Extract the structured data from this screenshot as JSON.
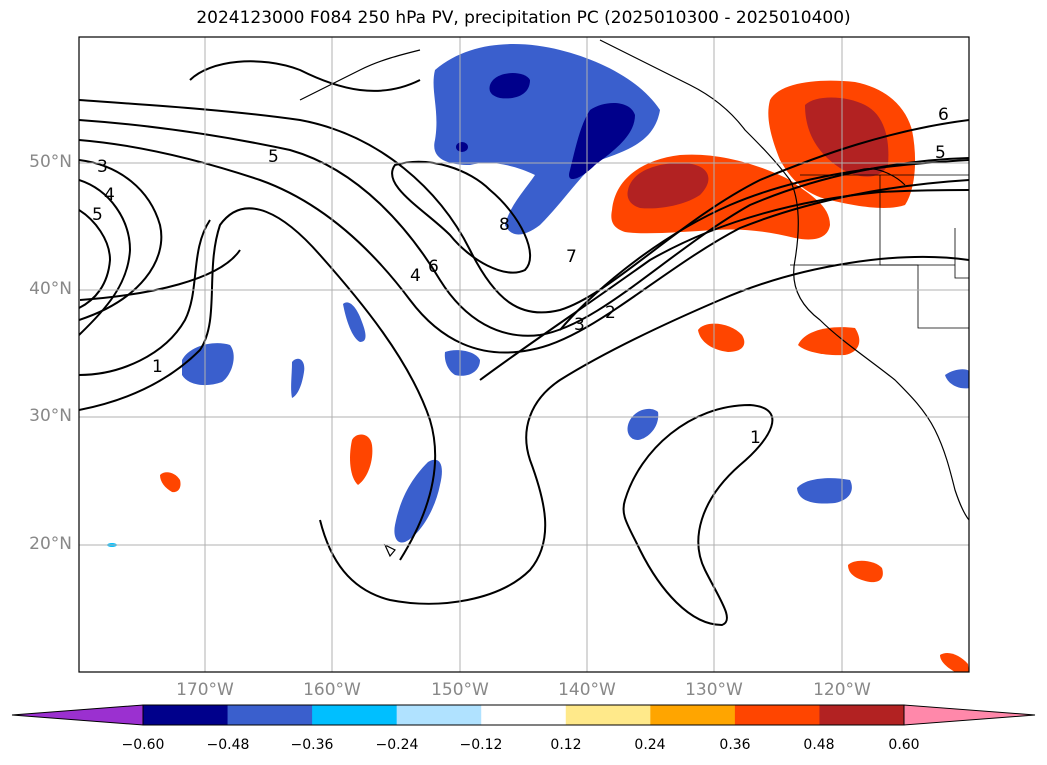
{
  "title": "2024123000 F084 250 hPa PV, precipitation PC (2025010300 - 2025010400)",
  "lat_labels": [
    "50°N",
    "40°N",
    "30°N",
    "20°N"
  ],
  "lon_labels": [
    "170°W",
    "160°W",
    "150°W",
    "140°W",
    "130°W",
    "120°W"
  ],
  "colorbar": {
    "ticks": [
      "−0.60",
      "−0.48",
      "−0.36",
      "−0.24",
      "−0.12",
      "0.12",
      "0.24",
      "0.36",
      "0.48",
      "0.60"
    ],
    "colors": [
      "#9b30d0",
      "#00008b",
      "#3a5fcd",
      "#00bfff",
      "#b0e2ff",
      "#ffffff",
      "#ffe98a",
      "#ffa500",
      "#ff4500",
      "#b22222",
      "#ff88aa"
    ]
  },
  "contour_labels": [
    "3",
    "4",
    "5",
    "5",
    "6",
    "4",
    "8",
    "7",
    "3",
    "2",
    "1",
    "1",
    "6",
    "5"
  ]
}
